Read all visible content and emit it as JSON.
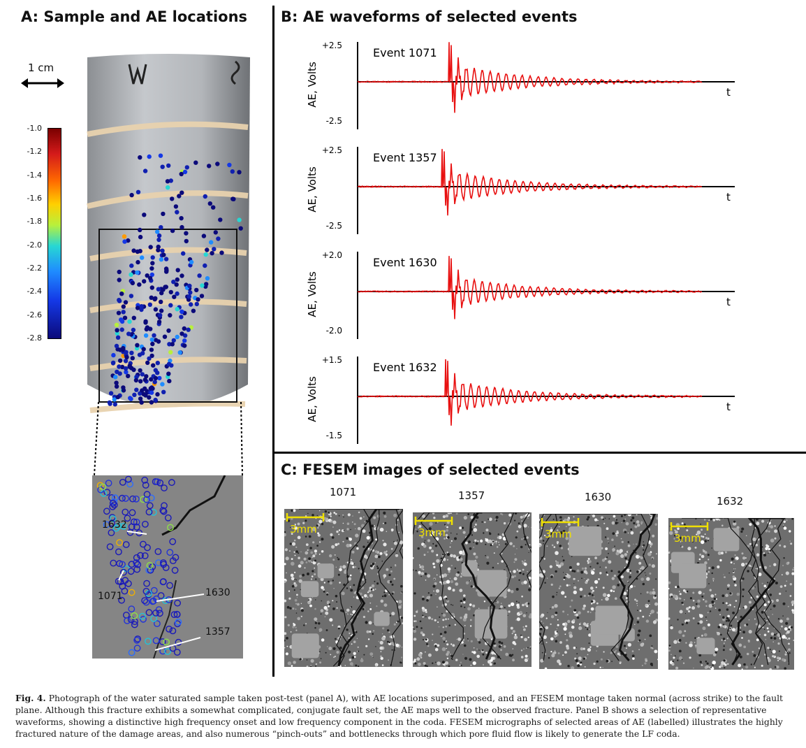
{
  "panel_a": {
    "title": "A: Sample and AE locations",
    "scale_label": "1 cm",
    "colorbar_ticks": [
      "-1.0",
      "-1.2",
      "-1.4",
      "-1.6",
      "-1.8",
      "-2.0",
      "-2.2",
      "-2.4",
      "-2.6",
      "-2.8"
    ],
    "inset_labels": [
      "1632",
      "1071",
      "1630",
      "1357"
    ]
  },
  "panel_b": {
    "title": "B: AE waveforms of selected events",
    "waveforms": [
      {
        "event": "Event 1071",
        "ymax": "+2.5",
        "ymin": "-2.5",
        "ylabel": "AE, Volts",
        "xlabel": "t"
      },
      {
        "event": "Event 1357",
        "ymax": "+2.5",
        "ymin": "-2.5",
        "ylabel": "AE, Volts",
        "xlabel": "t"
      },
      {
        "event": "Event 1630",
        "ymax": "+2.0",
        "ymin": "-2.0",
        "ylabel": "AE, Volts",
        "xlabel": "t"
      },
      {
        "event": "Event 1632",
        "ymax": "+1.5",
        "ymin": "-1.5",
        "ylabel": "AE, Volts",
        "xlabel": "t"
      }
    ]
  },
  "panel_c": {
    "title": "C: FESEM images of selected events",
    "images": [
      {
        "label": "1071",
        "scale": "3mm"
      },
      {
        "label": "1357",
        "scale": "3mm"
      },
      {
        "label": "1630",
        "scale": "3mm"
      },
      {
        "label": "1632",
        "scale": "3mm"
      }
    ]
  },
  "caption": {
    "fig_label": "Fig. 4.",
    "text": "Photograph of the water saturated sample taken post-test (panel A), with AE locations superimposed, and an FESEM montage taken normal (across strike) to the fault plane. Although this fracture exhibits a somewhat complicated, conjugate fault set, the AE maps well to the observed fracture. Panel B shows a selection of representative waveforms, showing a distinctive high frequency onset and low frequency component in the coda. FESEM micrographs of selected areas of AE (labelled) illustrates the highly fractured nature of the damage areas, and also numerous “pinch-outs” and bottlenecks through which pore fluid flow is likely to generate the LF coda."
  },
  "colors": {
    "waveform": "#e81010",
    "axis": "#000000",
    "scale_bar": "#f0e000"
  }
}
